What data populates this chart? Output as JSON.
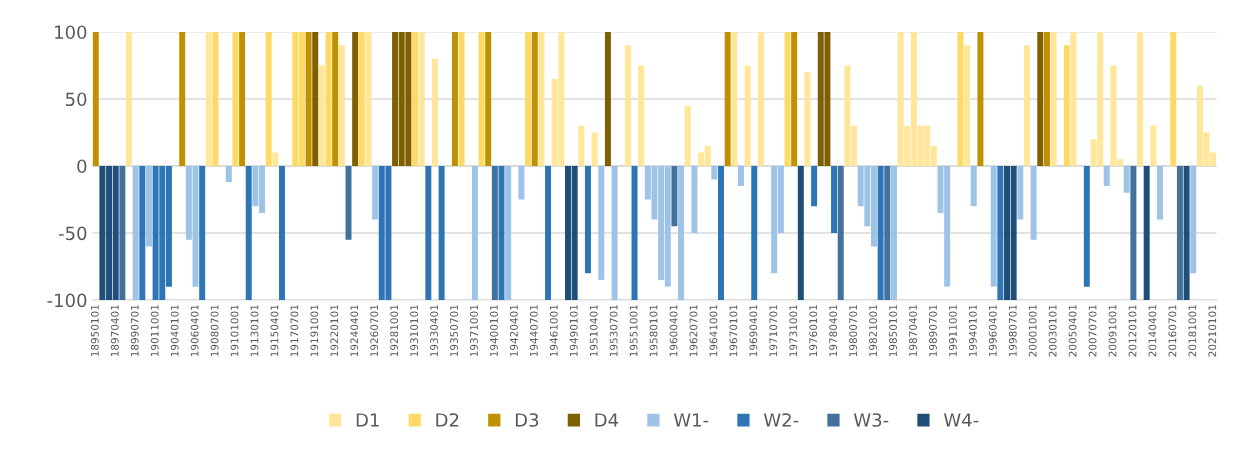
{
  "chart_data": {
    "type": "bar",
    "categories": [
      "18950101",
      null,
      null,
      "18970401",
      null,
      null,
      "18990701",
      null,
      null,
      "19011001",
      null,
      null,
      "19040101",
      null,
      null,
      "19060401",
      null,
      null,
      "19080701",
      null,
      null,
      "19101001",
      null,
      null,
      "19130101",
      null,
      null,
      "19150401",
      null,
      null,
      "19170701",
      null,
      null,
      "19191001",
      null,
      null,
      "19220101",
      null,
      null,
      "19240401",
      null,
      null,
      "19260701",
      null,
      null,
      "19281001",
      null,
      null,
      "19310101",
      null,
      null,
      "19330401",
      null,
      null,
      "19350701",
      null,
      null,
      "19371001",
      null,
      null,
      "19400101",
      null,
      null,
      "19420401",
      null,
      null,
      "19440701",
      null,
      null,
      "19461001",
      null,
      null,
      "19490101",
      null,
      null,
      "19510401",
      null,
      null,
      "19530701",
      null,
      null,
      "19551001",
      null,
      null,
      "19580101",
      null,
      null,
      "19600401",
      null,
      null,
      "19620701",
      null,
      null,
      "19641001",
      null,
      null,
      "19670101",
      null,
      null,
      "19690401",
      null,
      null,
      "19710701",
      null,
      null,
      "19731001",
      null,
      null,
      "19760101",
      null,
      null,
      "19780401",
      null,
      null,
      "19800701",
      null,
      null,
      "19821001",
      null,
      null,
      "19850101",
      null,
      null,
      "19870401",
      null,
      null,
      "19890701",
      null,
      null,
      "19911001",
      null,
      null,
      "19940101",
      null,
      null,
      "19960401",
      null,
      null,
      "19980701",
      null,
      null,
      "20001001",
      null,
      null,
      "20030101",
      null,
      null,
      "20050401",
      null,
      null,
      "20070701",
      null,
      null,
      "20091001",
      null,
      null,
      "20120101",
      null,
      null,
      "20140401",
      null,
      null,
      "20160701",
      null,
      null,
      "20181001",
      null,
      null,
      "20210101"
    ],
    "series": [
      {
        "name": "D1",
        "color": "#ffe699",
        "values": [
          null,
          null,
          null,
          null,
          null,
          100,
          null,
          null,
          null,
          null,
          null,
          null,
          null,
          null,
          null,
          null,
          null,
          100,
          null,
          null,
          null,
          null,
          null,
          null,
          null,
          null,
          null,
          10,
          null,
          null,
          null,
          null,
          null,
          null,
          75,
          null,
          null,
          90,
          null,
          null,
          null,
          100,
          null,
          null,
          null,
          null,
          null,
          null,
          null,
          100,
          null,
          80,
          null,
          null,
          null,
          null,
          null,
          null,
          null,
          null,
          null,
          null,
          null,
          null,
          null,
          null,
          null,
          100,
          null,
          65,
          100,
          null,
          null,
          30,
          null,
          25,
          null,
          null,
          null,
          null,
          90,
          null,
          75,
          null,
          null,
          null,
          null,
          null,
          null,
          45,
          null,
          10,
          15,
          null,
          null,
          null,
          100,
          null,
          75,
          null,
          100,
          null,
          null,
          null,
          null,
          null,
          null,
          70,
          null,
          null,
          null,
          null,
          null,
          75,
          30,
          null,
          null,
          null,
          null,
          null,
          null,
          100,
          30,
          100,
          30,
          30,
          15,
          null,
          null,
          null,
          null,
          90,
          null,
          null,
          null,
          null,
          null,
          null,
          null,
          null,
          90,
          null,
          null,
          null,
          100,
          null,
          null,
          100,
          null,
          null,
          20,
          100,
          null,
          75,
          5,
          null,
          null,
          100,
          null,
          30,
          null,
          null,
          null,
          null,
          null,
          null,
          60,
          25,
          10
        ]
      },
      {
        "name": "D2",
        "color": "#ffd966",
        "values": [
          null,
          null,
          null,
          null,
          null,
          null,
          null,
          null,
          null,
          null,
          null,
          null,
          null,
          null,
          null,
          null,
          null,
          null,
          100,
          null,
          null,
          100,
          null,
          null,
          null,
          null,
          100,
          null,
          null,
          null,
          100,
          100,
          null,
          null,
          null,
          100,
          null,
          null,
          null,
          null,
          100,
          null,
          null,
          null,
          null,
          null,
          null,
          null,
          100,
          null,
          null,
          null,
          null,
          null,
          null,
          100,
          null,
          null,
          100,
          null,
          null,
          null,
          null,
          null,
          null,
          100,
          null,
          null,
          null,
          null,
          null,
          null,
          null,
          null,
          null,
          null,
          null,
          null,
          null,
          null,
          null,
          null,
          null,
          null,
          null,
          null,
          null,
          null,
          null,
          null,
          null,
          null,
          null,
          null,
          null,
          null,
          null,
          null,
          null,
          null,
          null,
          null,
          null,
          null,
          100,
          null,
          null,
          null,
          null,
          null,
          null,
          null,
          null,
          null,
          null,
          null,
          null,
          null,
          null,
          null,
          null,
          null,
          null,
          null,
          null,
          null,
          null,
          null,
          null,
          null,
          100,
          null,
          null,
          null,
          null,
          null,
          null,
          null,
          null,
          null,
          null,
          null,
          null,
          null,
          null,
          null,
          90,
          null,
          null,
          null,
          null,
          null,
          null,
          null,
          null,
          null,
          null,
          null,
          null,
          null,
          null,
          null,
          100,
          null,
          null,
          null,
          null,
          null,
          null
        ]
      },
      {
        "name": "D3",
        "color": "#bf9000",
        "values": [
          100,
          null,
          null,
          null,
          null,
          null,
          null,
          null,
          null,
          null,
          null,
          null,
          null,
          100,
          null,
          null,
          null,
          null,
          null,
          null,
          null,
          null,
          100,
          null,
          null,
          null,
          null,
          null,
          null,
          null,
          null,
          null,
          100,
          null,
          null,
          null,
          100,
          null,
          null,
          null,
          null,
          null,
          null,
          null,
          null,
          null,
          null,
          null,
          null,
          null,
          null,
          null,
          null,
          null,
          100,
          null,
          null,
          null,
          null,
          100,
          null,
          null,
          null,
          null,
          null,
          null,
          100,
          null,
          null,
          null,
          null,
          null,
          null,
          null,
          null,
          null,
          null,
          null,
          null,
          null,
          null,
          null,
          null,
          null,
          null,
          null,
          null,
          null,
          null,
          null,
          null,
          null,
          null,
          null,
          null,
          100,
          null,
          null,
          null,
          null,
          null,
          null,
          null,
          null,
          null,
          100,
          null,
          null,
          null,
          null,
          null,
          null,
          null,
          null,
          null,
          null,
          null,
          null,
          null,
          null,
          null,
          null,
          null,
          null,
          null,
          null,
          null,
          null,
          null,
          null,
          null,
          null,
          null,
          100,
          null,
          null,
          null,
          null,
          null,
          null,
          null,
          null,
          null,
          100,
          null,
          null,
          null,
          null,
          null,
          null,
          null,
          null,
          null,
          null,
          null,
          null,
          null,
          null,
          null,
          null,
          null,
          null,
          null,
          null,
          null,
          null,
          null,
          null,
          null
        ]
      },
      {
        "name": "D4",
        "color": "#7f6000",
        "values": [
          null,
          null,
          null,
          null,
          null,
          null,
          null,
          null,
          null,
          null,
          null,
          null,
          null,
          null,
          null,
          null,
          null,
          null,
          null,
          null,
          null,
          null,
          null,
          null,
          null,
          null,
          null,
          null,
          null,
          null,
          null,
          null,
          null,
          100,
          null,
          null,
          null,
          null,
          null,
          100,
          null,
          null,
          null,
          null,
          null,
          100,
          100,
          100,
          null,
          null,
          null,
          null,
          null,
          null,
          null,
          null,
          null,
          null,
          null,
          null,
          null,
          null,
          null,
          null,
          null,
          null,
          null,
          null,
          null,
          null,
          null,
          null,
          null,
          null,
          null,
          null,
          null,
          100,
          null,
          null,
          null,
          null,
          null,
          null,
          null,
          null,
          null,
          null,
          null,
          null,
          null,
          null,
          null,
          null,
          null,
          null,
          null,
          null,
          null,
          null,
          null,
          null,
          null,
          null,
          null,
          null,
          null,
          null,
          null,
          100,
          100,
          null,
          null,
          null,
          null,
          null,
          null,
          null,
          null,
          null,
          null,
          null,
          null,
          null,
          null,
          null,
          null,
          null,
          null,
          null,
          null,
          null,
          null,
          null,
          null,
          null,
          null,
          null,
          null,
          null,
          null,
          null,
          100,
          null,
          null,
          null,
          null,
          null,
          null,
          null,
          null,
          null,
          null,
          null,
          null,
          null,
          null,
          null,
          null,
          null,
          null,
          null,
          null,
          null,
          null,
          null,
          null,
          null,
          null
        ]
      },
      {
        "name": "W1-",
        "color": "#9dc3e6",
        "values": [
          null,
          null,
          null,
          null,
          null,
          null,
          -100,
          null,
          -60,
          null,
          null,
          null,
          null,
          null,
          -55,
          -90,
          null,
          null,
          null,
          null,
          -12,
          null,
          null,
          null,
          -30,
          -35,
          null,
          null,
          null,
          null,
          null,
          null,
          null,
          null,
          null,
          null,
          null,
          null,
          null,
          null,
          null,
          null,
          -40,
          null,
          null,
          null,
          null,
          null,
          null,
          null,
          null,
          null,
          null,
          null,
          null,
          null,
          null,
          -100,
          null,
          null,
          null,
          null,
          -100,
          null,
          -25,
          null,
          null,
          null,
          null,
          null,
          null,
          null,
          null,
          null,
          null,
          null,
          -85,
          null,
          -100,
          null,
          null,
          null,
          null,
          -25,
          -40,
          -85,
          -90,
          null,
          -100,
          null,
          -50,
          null,
          null,
          -10,
          null,
          null,
          null,
          -15,
          null,
          null,
          null,
          null,
          -80,
          -50,
          null,
          null,
          null,
          null,
          null,
          null,
          null,
          null,
          null,
          null,
          null,
          -30,
          -45,
          -60,
          null,
          null,
          -100,
          null,
          null,
          null,
          null,
          null,
          null,
          -35,
          -90,
          null,
          null,
          null,
          -30,
          null,
          null,
          -90,
          null,
          null,
          null,
          -40,
          null,
          -55,
          null,
          null,
          null,
          null,
          null,
          null,
          null,
          null,
          null,
          null,
          -15,
          null,
          null,
          -20,
          null,
          null,
          null,
          null,
          -40,
          null,
          null,
          null,
          null,
          -80,
          null,
          null,
          null
        ]
      },
      {
        "name": "W2-",
        "color": "#2e75b6",
        "values": [
          null,
          null,
          null,
          null,
          null,
          null,
          null,
          -100,
          null,
          -100,
          -100,
          -90,
          null,
          null,
          null,
          null,
          -100,
          null,
          null,
          null,
          null,
          null,
          null,
          -100,
          null,
          null,
          null,
          null,
          -100,
          null,
          null,
          null,
          null,
          null,
          null,
          null,
          null,
          null,
          null,
          null,
          null,
          null,
          null,
          -100,
          -100,
          null,
          null,
          null,
          null,
          null,
          -100,
          null,
          -100,
          null,
          null,
          null,
          null,
          null,
          null,
          null,
          null,
          -100,
          null,
          null,
          null,
          null,
          null,
          null,
          -100,
          null,
          null,
          null,
          null,
          null,
          -80,
          null,
          null,
          null,
          null,
          null,
          null,
          -100,
          null,
          null,
          null,
          null,
          null,
          null,
          null,
          null,
          null,
          null,
          null,
          null,
          -100,
          null,
          null,
          null,
          null,
          -100,
          null,
          null,
          null,
          null,
          null,
          null,
          null,
          null,
          -30,
          null,
          null,
          -50,
          null,
          null,
          null,
          null,
          null,
          null,
          -100,
          null,
          null,
          null,
          null,
          null,
          null,
          null,
          null,
          null,
          null,
          null,
          null,
          null,
          null,
          null,
          null,
          null,
          -100,
          null,
          null,
          null,
          null,
          null,
          null,
          null,
          null,
          null,
          null,
          null,
          null,
          -90,
          null,
          null,
          null,
          null,
          null,
          null,
          null,
          null,
          null,
          null,
          null,
          null,
          null,
          null,
          null,
          null,
          null,
          null,
          null
        ]
      },
      {
        "name": "W3-",
        "color": "#41719c",
        "values": [
          null,
          null,
          null,
          null,
          -100,
          null,
          null,
          null,
          null,
          null,
          null,
          null,
          null,
          null,
          null,
          null,
          null,
          null,
          null,
          null,
          null,
          null,
          null,
          null,
          null,
          null,
          null,
          null,
          null,
          null,
          null,
          null,
          null,
          null,
          null,
          null,
          null,
          null,
          -55,
          null,
          null,
          null,
          null,
          null,
          null,
          null,
          null,
          null,
          null,
          null,
          null,
          null,
          null,
          null,
          null,
          null,
          null,
          null,
          null,
          null,
          -100,
          null,
          null,
          null,
          null,
          null,
          null,
          null,
          null,
          null,
          null,
          null,
          null,
          null,
          null,
          null,
          null,
          null,
          null,
          null,
          null,
          null,
          null,
          null,
          null,
          null,
          null,
          -45,
          null,
          null,
          null,
          null,
          null,
          null,
          null,
          null,
          null,
          null,
          null,
          null,
          null,
          null,
          null,
          null,
          null,
          null,
          null,
          null,
          null,
          null,
          null,
          null,
          -100,
          null,
          null,
          null,
          null,
          null,
          null,
          -100,
          null,
          null,
          null,
          null,
          null,
          null,
          null,
          null,
          null,
          null,
          null,
          null,
          null,
          null,
          null,
          null,
          null,
          null,
          null,
          null,
          null,
          null,
          null,
          null,
          null,
          null,
          null,
          null,
          null,
          null,
          null,
          null,
          null,
          null,
          null,
          null,
          -100,
          null,
          null,
          null,
          null,
          null,
          null,
          -100,
          null,
          null,
          null,
          null,
          null
        ]
      },
      {
        "name": "W4-",
        "color": "#1f4e79",
        "values": [
          null,
          -100,
          -100,
          -100,
          null,
          null,
          null,
          null,
          null,
          null,
          null,
          null,
          null,
          null,
          null,
          null,
          null,
          null,
          null,
          null,
          null,
          null,
          null,
          null,
          null,
          null,
          null,
          null,
          null,
          null,
          null,
          null,
          null,
          null,
          null,
          null,
          null,
          null,
          null,
          null,
          null,
          null,
          null,
          null,
          null,
          null,
          null,
          null,
          null,
          null,
          null,
          null,
          null,
          null,
          null,
          null,
          null,
          null,
          null,
          null,
          null,
          null,
          null,
          null,
          null,
          null,
          null,
          null,
          null,
          null,
          null,
          -100,
          -100,
          null,
          null,
          null,
          null,
          null,
          null,
          null,
          null,
          null,
          null,
          null,
          null,
          null,
          null,
          null,
          null,
          null,
          null,
          null,
          null,
          null,
          null,
          null,
          null,
          null,
          null,
          null,
          null,
          null,
          null,
          null,
          null,
          null,
          -100,
          null,
          null,
          null,
          null,
          null,
          null,
          null,
          null,
          null,
          null,
          null,
          null,
          null,
          null,
          null,
          null,
          null,
          null,
          null,
          null,
          null,
          null,
          null,
          null,
          null,
          null,
          null,
          null,
          null,
          null,
          -100,
          -100,
          null,
          null,
          null,
          null,
          null,
          null,
          null,
          null,
          null,
          null,
          null,
          null,
          null,
          null,
          null,
          null,
          null,
          null,
          null,
          -100,
          null,
          null,
          null,
          null,
          null,
          -100,
          null,
          null,
          null,
          null
        ]
      }
    ],
    "ylim": [
      -100,
      100
    ],
    "yticks": [
      -100,
      -50,
      0,
      50,
      100
    ],
    "grid": "y",
    "legend": "bottom"
  }
}
